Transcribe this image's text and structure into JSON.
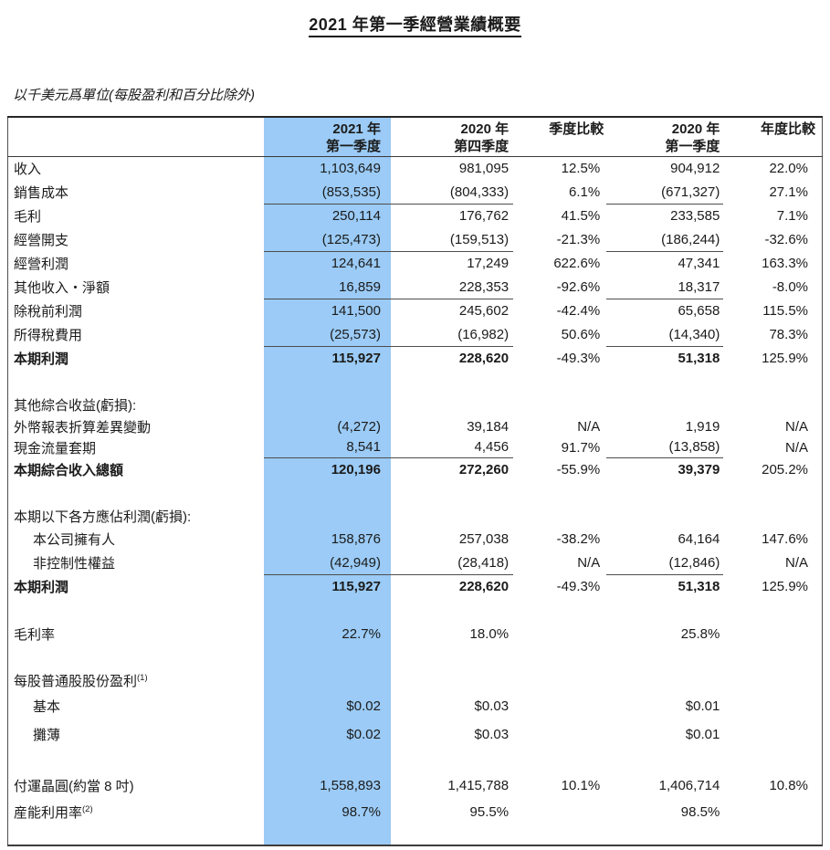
{
  "page": {
    "title": "2021 年第一季經營業績概要",
    "unit_note": "以千美元爲單位(每股盈利和百分比除外)"
  },
  "colors": {
    "highlight_column": "#9BCBF6",
    "frame_border": "#3c3c3c",
    "rule_line": "#4e4e4e",
    "text": "#1b1b1b"
  },
  "table": {
    "columns": [
      {
        "key": "item",
        "line1": "",
        "line2": ""
      },
      {
        "key": "q1_2021",
        "line1": "2021 年",
        "line2": "第一季度",
        "highlight": true
      },
      {
        "key": "q4_2020",
        "line1": "2020 年",
        "line2": "第四季度"
      },
      {
        "key": "qoq",
        "line1": "季度比較",
        "line2": ""
      },
      {
        "key": "q1_2020",
        "line1": "2020 年",
        "line2": "第一季度"
      },
      {
        "key": "yoy",
        "line1": "年度比較",
        "line2": ""
      }
    ],
    "rows": [
      {
        "label": "收入",
        "cells": [
          "1,103,649",
          "981,095",
          "12.5%",
          "904,912",
          "22.0%"
        ]
      },
      {
        "label": "銷售成本",
        "cells": [
          "(853,535)",
          "(804,333)",
          "6.1%",
          "(671,327)",
          "27.1%"
        ]
      },
      {
        "label": "毛利",
        "cells": [
          "250,114",
          "176,762",
          "41.5%",
          "233,585",
          "7.1%"
        ],
        "topline": true
      },
      {
        "label": "經營開支",
        "cells": [
          "(125,473)",
          "(159,513)",
          "-21.3%",
          "(186,244)",
          "-32.6%"
        ]
      },
      {
        "label": "經營利潤",
        "cells": [
          "124,641",
          "17,249",
          "622.6%",
          "47,341",
          "163.3%"
        ],
        "topline": true
      },
      {
        "label": "其他收入・淨額",
        "cells": [
          "16,859",
          "228,353",
          "-92.6%",
          "18,317",
          "-8.0%"
        ]
      },
      {
        "label": "除稅前利潤",
        "cells": [
          "141,500",
          "245,602",
          "-42.4%",
          "65,658",
          "115.5%"
        ],
        "topline": true
      },
      {
        "label": "所得稅費用",
        "cells": [
          "(25,573)",
          "(16,982)",
          "50.6%",
          "(14,340)",
          "78.3%"
        ]
      },
      {
        "label": "本期利潤",
        "cells": [
          "115,927",
          "228,620",
          "-49.3%",
          "51,318",
          "125.9%"
        ],
        "bold": true,
        "topline": true
      },
      {
        "type": "spacer"
      },
      {
        "label": "其他綜合收益(虧損):",
        "section": true
      },
      {
        "label": "外幣報表折算差異變動",
        "cells": [
          "(4,272)",
          "39,184",
          "N/A",
          "1,919",
          "N/A"
        ],
        "spacing": "tight"
      },
      {
        "label": "現金流量套期",
        "cells": [
          "8,541",
          "4,456",
          "91.7%",
          "(13,858)",
          "N/A"
        ],
        "spacing": "tight"
      },
      {
        "label": "本期綜合收入總額",
        "cells": [
          "120,196",
          "272,260",
          "-55.9%",
          "39,379",
          "205.2%"
        ],
        "bold": true,
        "topline": true
      },
      {
        "type": "spacer"
      },
      {
        "label": "本期以下各方應佔利潤(虧損):",
        "section": true
      },
      {
        "label": "本公司擁有人",
        "cells": [
          "158,876",
          "257,038",
          "-38.2%",
          "64,164",
          "147.6%"
        ],
        "indent": true
      },
      {
        "label": "非控制性權益",
        "cells": [
          "(42,949)",
          "(28,418)",
          "N/A",
          "(12,846)",
          "N/A"
        ],
        "indent": true
      },
      {
        "label": "本期利潤",
        "cells": [
          "115,927",
          "228,620",
          "-49.3%",
          "51,318",
          "125.9%"
        ],
        "bold": true,
        "topline": true
      },
      {
        "type": "spacer"
      },
      {
        "label": "毛利率",
        "cells": [
          "22.7%",
          "18.0%",
          "",
          "25.8%",
          ""
        ]
      },
      {
        "type": "spacer"
      },
      {
        "label": "每股普通股股份盈利",
        "sup": "(1)",
        "section": true
      },
      {
        "label": "基本",
        "cells": [
          "$0.02",
          "$0.03",
          "",
          "$0.01",
          ""
        ],
        "indent": true,
        "spacing": "tall"
      },
      {
        "label": "攤薄",
        "cells": [
          "$0.02",
          "$0.03",
          "",
          "$0.01",
          ""
        ],
        "indent": true,
        "spacing": "tall"
      },
      {
        "type": "spacer"
      },
      {
        "label": "付運晶圓(約當 8 吋)",
        "cells": [
          "1,558,893",
          "1,415,788",
          "10.1%",
          "1,406,714",
          "10.8%"
        ],
        "spacing": "wide"
      },
      {
        "label": "産能利用率",
        "sup": "(2)",
        "cells": [
          "98.7%",
          "95.5%",
          "",
          "98.5%",
          ""
        ],
        "spacing": "wide"
      },
      {
        "type": "spacer",
        "spacing": "bottom"
      }
    ]
  }
}
